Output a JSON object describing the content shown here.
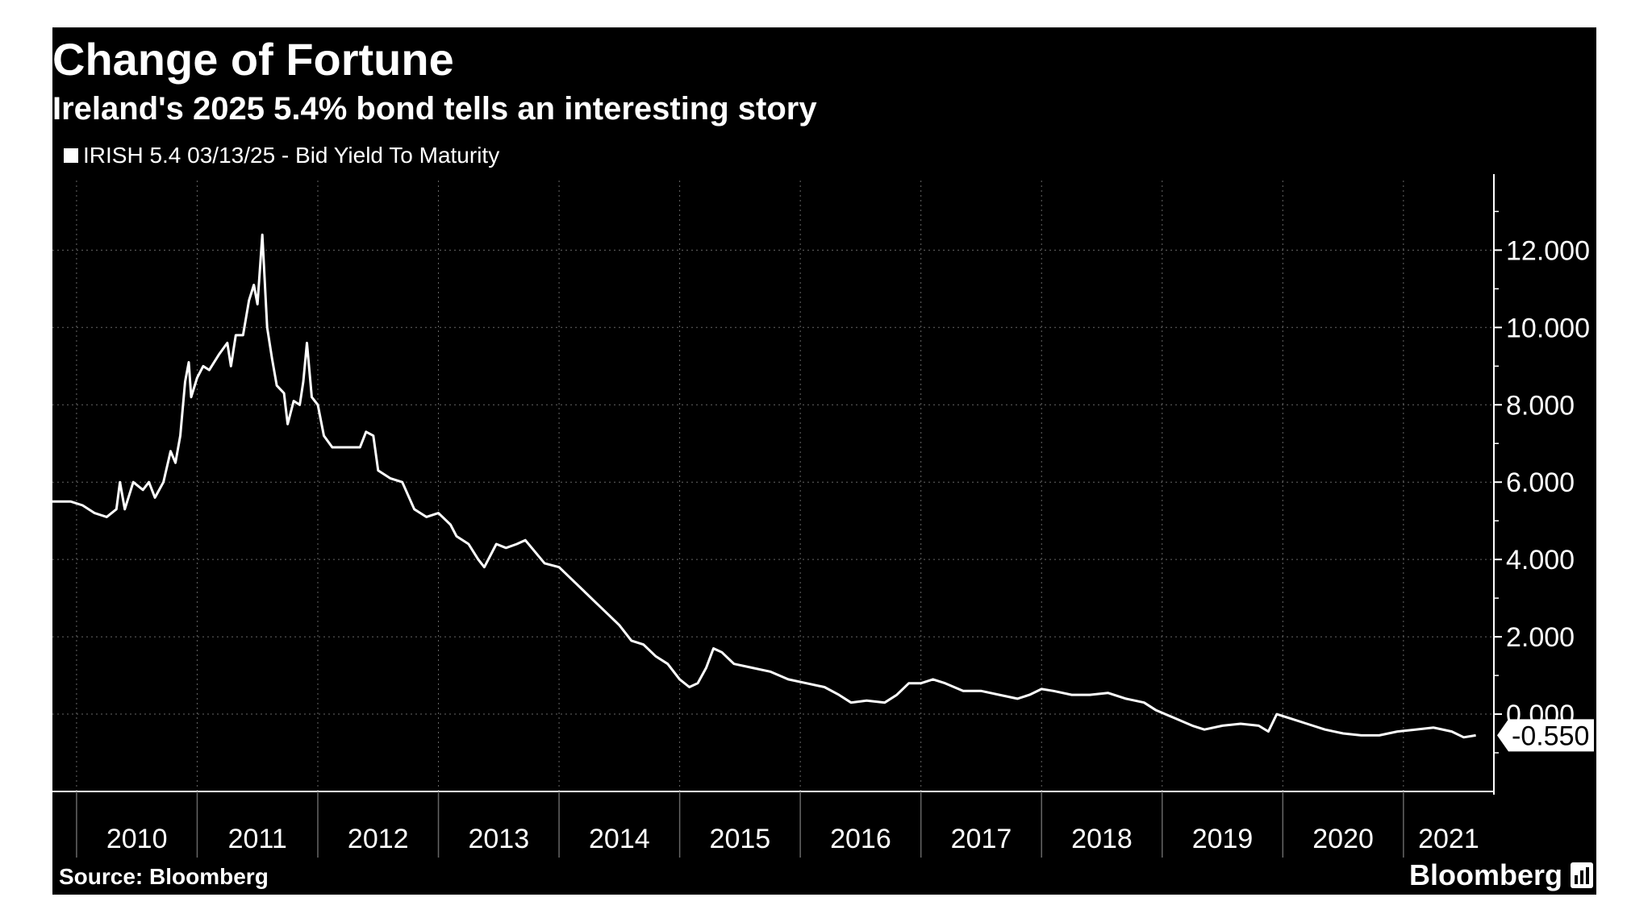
{
  "chart_data": {
    "type": "line",
    "title": "Change of Fortune",
    "subtitle": "Ireland's 2025 5.4% bond tells an interesting story",
    "series": [
      {
        "name": "IRISH 5.4 03/13/25 - Bid Yield To Maturity",
        "last_value_label": "-0.550",
        "points": [
          [
            2009.8,
            5.5
          ],
          [
            2009.95,
            5.5
          ],
          [
            2010.05,
            5.4
          ],
          [
            2010.15,
            5.2
          ],
          [
            2010.25,
            5.1
          ],
          [
            2010.33,
            5.3
          ],
          [
            2010.36,
            6.0
          ],
          [
            2010.4,
            5.3
          ],
          [
            2010.47,
            6.0
          ],
          [
            2010.55,
            5.8
          ],
          [
            2010.6,
            6.0
          ],
          [
            2010.65,
            5.6
          ],
          [
            2010.72,
            6.0
          ],
          [
            2010.78,
            6.8
          ],
          [
            2010.82,
            6.5
          ],
          [
            2010.86,
            7.2
          ],
          [
            2010.9,
            8.6
          ],
          [
            2010.93,
            9.1
          ],
          [
            2010.95,
            8.2
          ],
          [
            2011.0,
            8.7
          ],
          [
            2011.05,
            9.0
          ],
          [
            2011.1,
            8.9
          ],
          [
            2011.18,
            9.3
          ],
          [
            2011.25,
            9.6
          ],
          [
            2011.28,
            9.0
          ],
          [
            2011.32,
            9.8
          ],
          [
            2011.38,
            9.8
          ],
          [
            2011.43,
            10.7
          ],
          [
            2011.47,
            11.1
          ],
          [
            2011.5,
            10.6
          ],
          [
            2011.54,
            12.4
          ],
          [
            2011.56,
            11.2
          ],
          [
            2011.58,
            10.0
          ],
          [
            2011.62,
            9.2
          ],
          [
            2011.66,
            8.5
          ],
          [
            2011.72,
            8.3
          ],
          [
            2011.75,
            7.5
          ],
          [
            2011.8,
            8.1
          ],
          [
            2011.85,
            8.0
          ],
          [
            2011.88,
            8.6
          ],
          [
            2011.91,
            9.6
          ],
          [
            2011.95,
            8.2
          ],
          [
            2012.0,
            8.0
          ],
          [
            2012.05,
            7.2
          ],
          [
            2012.12,
            6.9
          ],
          [
            2012.25,
            6.9
          ],
          [
            2012.35,
            6.9
          ],
          [
            2012.4,
            7.3
          ],
          [
            2012.46,
            7.2
          ],
          [
            2012.5,
            6.3
          ],
          [
            2012.6,
            6.1
          ],
          [
            2012.7,
            6.0
          ],
          [
            2012.8,
            5.3
          ],
          [
            2012.9,
            5.1
          ],
          [
            2013.0,
            5.2
          ],
          [
            2013.1,
            4.9
          ],
          [
            2013.15,
            4.6
          ],
          [
            2013.25,
            4.4
          ],
          [
            2013.33,
            4.0
          ],
          [
            2013.38,
            3.8
          ],
          [
            2013.48,
            4.4
          ],
          [
            2013.56,
            4.3
          ],
          [
            2013.65,
            4.4
          ],
          [
            2013.72,
            4.5
          ],
          [
            2013.8,
            4.2
          ],
          [
            2013.88,
            3.9
          ],
          [
            2014.0,
            3.8
          ],
          [
            2014.1,
            3.5
          ],
          [
            2014.2,
            3.2
          ],
          [
            2014.3,
            2.9
          ],
          [
            2014.4,
            2.6
          ],
          [
            2014.5,
            2.3
          ],
          [
            2014.6,
            1.9
          ],
          [
            2014.7,
            1.8
          ],
          [
            2014.8,
            1.5
          ],
          [
            2014.9,
            1.3
          ],
          [
            2015.0,
            0.9
          ],
          [
            2015.08,
            0.7
          ],
          [
            2015.15,
            0.8
          ],
          [
            2015.22,
            1.2
          ],
          [
            2015.28,
            1.7
          ],
          [
            2015.35,
            1.6
          ],
          [
            2015.45,
            1.3
          ],
          [
            2015.6,
            1.2
          ],
          [
            2015.75,
            1.1
          ],
          [
            2015.9,
            0.9
          ],
          [
            2016.05,
            0.8
          ],
          [
            2016.2,
            0.7
          ],
          [
            2016.32,
            0.5
          ],
          [
            2016.42,
            0.3
          ],
          [
            2016.55,
            0.35
          ],
          [
            2016.7,
            0.3
          ],
          [
            2016.8,
            0.5
          ],
          [
            2016.9,
            0.8
          ],
          [
            2017.0,
            0.8
          ],
          [
            2017.1,
            0.9
          ],
          [
            2017.2,
            0.8
          ],
          [
            2017.35,
            0.6
          ],
          [
            2017.5,
            0.6
          ],
          [
            2017.65,
            0.5
          ],
          [
            2017.8,
            0.4
          ],
          [
            2017.9,
            0.5
          ],
          [
            2018.0,
            0.65
          ],
          [
            2018.1,
            0.6
          ],
          [
            2018.25,
            0.5
          ],
          [
            2018.4,
            0.5
          ],
          [
            2018.55,
            0.55
          ],
          [
            2018.7,
            0.4
          ],
          [
            2018.85,
            0.3
          ],
          [
            2018.95,
            0.1
          ],
          [
            2019.1,
            -0.1
          ],
          [
            2019.25,
            -0.3
          ],
          [
            2019.35,
            -0.4
          ],
          [
            2019.5,
            -0.3
          ],
          [
            2019.65,
            -0.25
          ],
          [
            2019.8,
            -0.3
          ],
          [
            2019.88,
            -0.45
          ],
          [
            2019.95,
            0.0
          ],
          [
            2020.05,
            -0.1
          ],
          [
            2020.2,
            -0.25
          ],
          [
            2020.35,
            -0.4
          ],
          [
            2020.5,
            -0.5
          ],
          [
            2020.65,
            -0.55
          ],
          [
            2020.8,
            -0.55
          ],
          [
            2020.95,
            -0.45
          ],
          [
            2021.1,
            -0.4
          ],
          [
            2021.25,
            -0.35
          ],
          [
            2021.4,
            -0.45
          ],
          [
            2021.5,
            -0.6
          ],
          [
            2021.6,
            -0.55
          ]
        ]
      }
    ],
    "ylim": [
      -2.0,
      13.8
    ],
    "yticks": [
      0,
      2,
      4,
      6,
      8,
      10,
      12
    ],
    "ytick_labels": [
      "0.000",
      "2.000",
      "4.000",
      "6.000",
      "8.000",
      "10.000",
      "12.000"
    ],
    "xlim": [
      2009.8,
      2021.75
    ],
    "xtick_labels": [
      "2010",
      "2011",
      "2012",
      "2013",
      "2014",
      "2015",
      "2016",
      "2017",
      "2018",
      "2019",
      "2020",
      "2021"
    ],
    "gridlines": true,
    "colors": {
      "background": "#000000",
      "line": "#ffffff",
      "grid": "#666666",
      "text": "#ffffff"
    }
  },
  "footer": {
    "source": "Source: Bloomberg",
    "brand": "Bloomberg"
  }
}
